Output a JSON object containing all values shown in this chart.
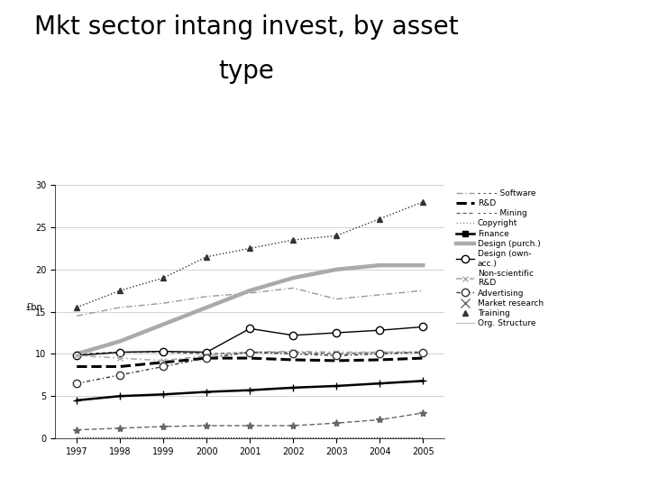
{
  "title_line1": "Mkt sector intang invest, by asset",
  "title_line2": "type",
  "years": [
    1997,
    1998,
    1999,
    2000,
    2001,
    2002,
    2003,
    2004,
    2005
  ],
  "ylabel": "£bn",
  "ylim": [
    0,
    30
  ],
  "yticks": [
    0,
    5,
    10,
    15,
    20,
    25,
    30
  ],
  "background": "#ffffff",
  "title_fontsize": 20,
  "axis_fontsize": 7,
  "series": [
    {
      "key": "Software",
      "values": [
        14.5,
        15.5,
        16.0,
        16.8,
        17.2,
        17.8,
        16.5,
        17.0,
        17.5
      ],
      "color": "#999999",
      "lw": 1.0,
      "ls": "-",
      "dashes": [
        5,
        2,
        1,
        2
      ],
      "marker": null
    },
    {
      "key": "R&D",
      "values": [
        8.5,
        8.5,
        9.0,
        9.5,
        9.5,
        9.3,
        9.2,
        9.3,
        9.5
      ],
      "color": "#000000",
      "lw": 2.2,
      "ls": "--",
      "dashes": null,
      "marker": null
    },
    {
      "key": "Mining",
      "values": [
        10.0,
        10.2,
        10.2,
        10.0,
        10.2,
        10.2,
        10.0,
        10.2,
        10.2
      ],
      "color": "#666666",
      "lw": 1.0,
      "ls": "--",
      "dashes": [
        3,
        2
      ],
      "marker": null
    },
    {
      "key": "Copyright",
      "values": [
        15.5,
        17.5,
        19.0,
        21.5,
        22.5,
        23.5,
        24.0,
        26.0,
        28.0
      ],
      "color": "#333333",
      "lw": 1.0,
      "ls": ":",
      "dashes": null,
      "marker": "^",
      "ms": 5,
      "mfc": "#333333",
      "mec": "#333333"
    },
    {
      "key": "Finance",
      "values": [
        4.5,
        5.0,
        5.2,
        5.5,
        5.7,
        6.0,
        6.2,
        6.5,
        6.8
      ],
      "color": "#000000",
      "lw": 1.8,
      "ls": "-",
      "dashes": null,
      "marker": "+",
      "ms": 6,
      "mfc": "#000000",
      "mec": "#000000"
    },
    {
      "key": "Design (purch.)",
      "values": [
        10.0,
        11.5,
        13.5,
        15.5,
        17.5,
        19.0,
        20.0,
        20.5,
        20.5
      ],
      "color": "#aaaaaa",
      "lw": 3.2,
      "ls": "-",
      "dashes": null,
      "marker": null
    },
    {
      "key": "Design (own-acc.)",
      "values": [
        9.8,
        10.2,
        10.3,
        10.2,
        13.0,
        12.2,
        12.5,
        12.8,
        13.2
      ],
      "color": "#000000",
      "lw": 1.0,
      "ls": "-",
      "dashes": null,
      "marker": "o",
      "ms": 6,
      "mfc": "white",
      "mec": "#000000"
    },
    {
      "key": "Non-scientific R&D",
      "values": [
        9.8,
        9.5,
        9.2,
        9.8,
        10.2,
        10.3,
        10.2,
        10.2,
        10.2
      ],
      "color": "#aaaaaa",
      "lw": 1.2,
      "ls": "-",
      "dashes": [
        4,
        2,
        1,
        2
      ],
      "marker": "x",
      "ms": 5,
      "mfc": "#aaaaaa",
      "mec": "#aaaaaa"
    },
    {
      "key": "Advertising",
      "values": [
        6.5,
        7.5,
        8.5,
        9.5,
        10.2,
        10.0,
        9.8,
        10.0,
        10.2
      ],
      "color": "#333333",
      "lw": 1.0,
      "ls": "-",
      "dashes": [
        3,
        2,
        1,
        2
      ],
      "marker": "o",
      "ms": 6,
      "mfc": "white",
      "mec": "#333333"
    },
    {
      "key": "Market research",
      "values": [
        1.0,
        1.2,
        1.4,
        1.5,
        1.5,
        1.5,
        1.8,
        2.2,
        3.0
      ],
      "color": "#666666",
      "lw": 1.0,
      "ls": "--",
      "dashes": [
        4,
        2
      ],
      "marker": "*",
      "ms": 6,
      "mfc": "#666666",
      "mec": "#666666"
    },
    {
      "key": "Training",
      "values": [
        0.08,
        0.08,
        0.07,
        0.05,
        0.05,
        0.04,
        0.04,
        0.04,
        0.04
      ],
      "color": "#000000",
      "lw": 0.8,
      "ls": ":",
      "dashes": null,
      "marker": null
    },
    {
      "key": "Org. Structure",
      "values": [
        0.0,
        0.0,
        0.0,
        0.0,
        0.0,
        0.0,
        0.0,
        0.0,
        0.0
      ],
      "color": "#bbbbbb",
      "lw": 0.8,
      "ls": "-",
      "dashes": null,
      "marker": null
    }
  ],
  "legend_defs": [
    {
      "label": "- - - - Software",
      "ls": "-",
      "dashes": [
        5,
        2,
        1,
        2
      ],
      "lw": 1.0,
      "color": "#999999",
      "marker": null
    },
    {
      "label": "R&D",
      "ls": "--",
      "dashes": null,
      "lw": 2.2,
      "color": "#000000",
      "marker": null
    },
    {
      "label": "- - - - Mining",
      "ls": "-",
      "dashes": [
        3,
        2
      ],
      "lw": 1.0,
      "color": "#666666",
      "marker": null
    },
    {
      "label": "Copyright",
      "ls": ":",
      "dashes": null,
      "lw": 1.0,
      "color": "#999999",
      "marker": null
    },
    {
      "label": "Finance",
      "ls": "-",
      "dashes": null,
      "lw": 1.8,
      "color": "#000000",
      "marker": "s",
      "ms": 4,
      "mfc": "#000000",
      "mec": "#000000"
    },
    {
      "label": "Design (purch.)",
      "ls": "-",
      "dashes": null,
      "lw": 3.2,
      "color": "#aaaaaa",
      "marker": null
    },
    {
      "label": "Design (own-\nacc.)",
      "ls": "-",
      "dashes": null,
      "lw": 1.0,
      "color": "#000000",
      "marker": "o",
      "ms": 6,
      "mfc": "white",
      "mec": "#000000"
    },
    {
      "label": "Non-scientific\nR&D",
      "ls": "-",
      "dashes": [
        4,
        2,
        1,
        2
      ],
      "lw": 1.2,
      "color": "#aaaaaa",
      "marker": "x",
      "ms": 5,
      "mfc": "#aaaaaa",
      "mec": "#aaaaaa"
    },
    {
      "label": "Advertising",
      "ls": "-",
      "dashes": [
        3,
        2,
        1,
        2
      ],
      "lw": 1.0,
      "color": "#333333",
      "marker": "o",
      "ms": 6,
      "mfc": "white",
      "mec": "#333333"
    },
    {
      "label": "Market research",
      "ls": "",
      "dashes": null,
      "lw": 0,
      "color": "#666666",
      "marker": "x",
      "ms": 7,
      "mfc": "#666666",
      "mec": "#666666"
    },
    {
      "label": "Training",
      "ls": "",
      "dashes": null,
      "lw": 0,
      "color": "#000000",
      "marker": "^",
      "ms": 5,
      "mfc": "#333333",
      "mec": "#333333"
    },
    {
      "label": "Org. Structure",
      "ls": "-",
      "dashes": null,
      "lw": 0.8,
      "color": "#bbbbbb",
      "marker": null
    }
  ]
}
